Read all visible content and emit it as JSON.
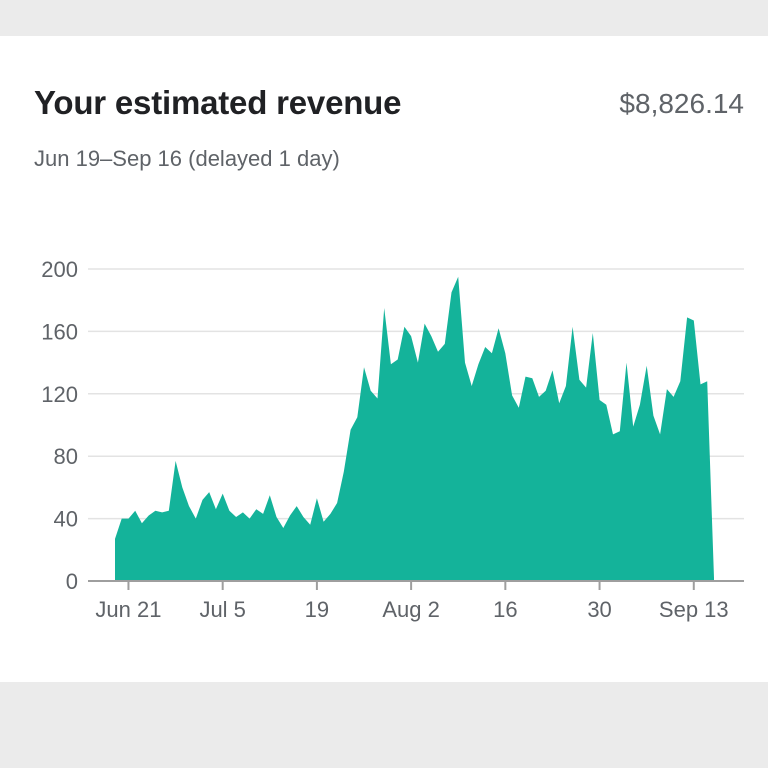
{
  "card": {
    "title": "Your estimated revenue",
    "total": "$8,826.14",
    "subtitle": "Jun 19–Sep 16 (delayed 1 day)"
  },
  "colors": {
    "area": "#14b39a",
    "grid": "#e3e3e3",
    "axis": "#9e9e9e",
    "text": "#5f6368",
    "title": "#202124",
    "background": "#ebebeb"
  },
  "chart_data": {
    "type": "area",
    "title": "",
    "xlabel": "",
    "ylabel": "",
    "ylim": [
      0,
      200
    ],
    "grid": true,
    "y_ticks": [
      "0",
      "40",
      "80",
      "120",
      "160",
      "200"
    ],
    "x_ticks": [
      "Jun 21",
      "Jul 5",
      "19",
      "Aug 2",
      "16",
      "30",
      "Sep 13"
    ],
    "x_tick_dates": [
      "Jun 21",
      "Jul 5",
      "Jul 19",
      "Aug 2",
      "Aug 16",
      "Aug 30",
      "Sep 13"
    ],
    "series": [
      {
        "x": [
          "Jun 19",
          "Jun 20",
          "Jun 21",
          "Jun 22",
          "Jun 23",
          "Jun 24",
          "Jun 25",
          "Jun 26",
          "Jun 27",
          "Jun 28",
          "Jun 29",
          "Jun 30",
          "Jul 1",
          "Jul 2",
          "Jul 3",
          "Jul 4",
          "Jul 5",
          "Jul 6",
          "Jul 7",
          "Jul 8",
          "Jul 9",
          "Jul 10",
          "Jul 11",
          "Jul 12",
          "Jul 13",
          "Jul 14",
          "Jul 15",
          "Jul 16",
          "Jul 17",
          "Jul 18",
          "Jul 19",
          "Jul 20",
          "Jul 21",
          "Jul 22",
          "Jul 23",
          "Jul 24",
          "Jul 25",
          "Jul 26",
          "Jul 27",
          "Jul 28",
          "Jul 29",
          "Jul 30",
          "Jul 31",
          "Aug 1",
          "Aug 2",
          "Aug 3",
          "Aug 4",
          "Aug 5",
          "Aug 6",
          "Aug 7",
          "Aug 8",
          "Aug 9",
          "Aug 10",
          "Aug 11",
          "Aug 12",
          "Aug 13",
          "Aug 14",
          "Aug 15",
          "Aug 16",
          "Aug 17",
          "Aug 18",
          "Aug 19",
          "Aug 20",
          "Aug 21",
          "Aug 22",
          "Aug 23",
          "Aug 24",
          "Aug 25",
          "Aug 26",
          "Aug 27",
          "Aug 28",
          "Aug 29",
          "Aug 30",
          "Aug 31",
          "Sep 1",
          "Sep 2",
          "Sep 3",
          "Sep 4",
          "Sep 5",
          "Sep 6",
          "Sep 7",
          "Sep 8",
          "Sep 9",
          "Sep 10",
          "Sep 11",
          "Sep 12",
          "Sep 13",
          "Sep 14",
          "Sep 15",
          "Sep 16"
        ],
        "values": [
          27,
          40,
          40,
          45,
          37,
          42,
          45,
          44,
          45,
          77,
          60,
          48,
          40,
          52,
          57,
          46,
          56,
          45,
          41,
          44,
          40,
          46,
          43,
          55,
          41,
          34,
          42,
          48,
          41,
          36,
          53,
          38,
          43,
          50,
          70,
          97,
          105,
          137,
          122,
          117,
          175,
          139,
          142,
          163,
          157,
          140,
          165,
          157,
          147,
          152,
          185,
          195,
          140,
          125,
          139,
          150,
          146,
          162,
          146,
          119,
          111,
          131,
          130,
          118,
          122,
          135,
          114,
          125,
          163,
          129,
          124,
          159,
          116,
          113,
          94,
          96,
          140,
          99,
          113,
          138,
          106,
          94,
          123,
          118,
          128,
          169,
          167,
          126,
          128,
          2
        ]
      }
    ]
  }
}
